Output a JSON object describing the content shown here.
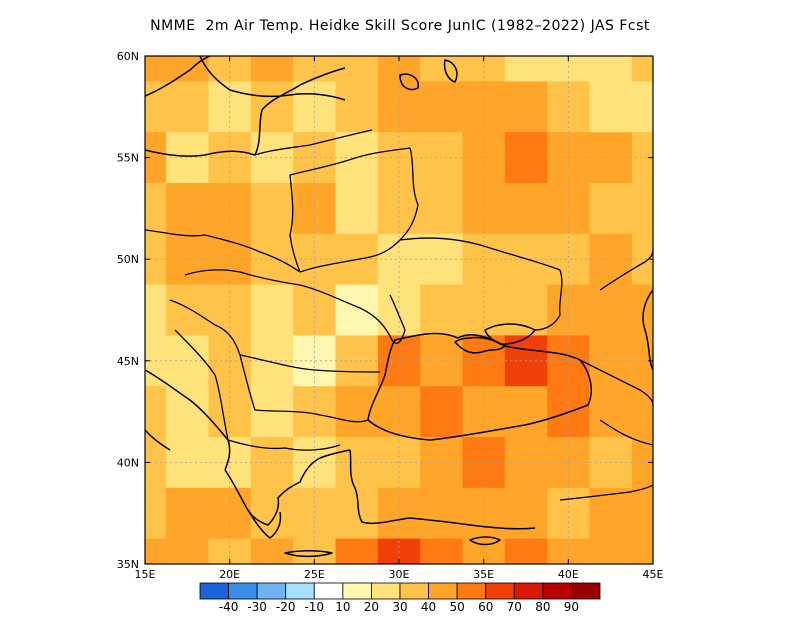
{
  "title": "NMME  2m Air Temp. Heidke Skill Score JunIC (1982–2022) JAS Fcst",
  "map": {
    "lon_range": [
      15,
      45
    ],
    "lat_range": [
      35,
      60
    ],
    "lon_ticks": [
      "15E",
      "20E",
      "25E",
      "30E",
      "35E",
      "40E",
      "45E"
    ],
    "lat_ticks": [
      "35N",
      "40N",
      "45N",
      "50N",
      "55N",
      "60N"
    ],
    "grid": true
  },
  "colorbar": {
    "colors": [
      "#1c62d8",
      "#3a8ee8",
      "#6fb4f0",
      "#a6e0fa",
      "#ffffff",
      "#fff6b0",
      "#ffe27a",
      "#ffc34a",
      "#ffa62a",
      "#ff7a12",
      "#f04008",
      "#d81a04",
      "#b80000",
      "#980000"
    ],
    "labels": [
      "-40",
      "-30",
      "-20",
      "-10",
      "10",
      "20",
      "30",
      "40",
      "50",
      "60",
      "70",
      "80",
      "90"
    ]
  },
  "chart_data": {
    "type": "heatmap",
    "title": "NMME  2m Air Temp. Heidke Skill Score JunIC (1982–2022) JAS Fcst",
    "x_axis": "longitude",
    "y_axis": "latitude",
    "xlim": [
      15,
      45
    ],
    "ylim": [
      35,
      60
    ],
    "levels": [
      -40,
      -30,
      -20,
      -10,
      10,
      20,
      30,
      40,
      50,
      60,
      70,
      80,
      90
    ],
    "lons": [
      15,
      17.5,
      20,
      22.5,
      25,
      27.5,
      30,
      32.5,
      35,
      37.5,
      40,
      42.5,
      45
    ],
    "lats": [
      60,
      57.5,
      55,
      52.5,
      50,
      47.5,
      45,
      42.5,
      40,
      37.5,
      35
    ],
    "values": [
      [
        40,
        40,
        35,
        40,
        35,
        30,
        40,
        35,
        30,
        25,
        20,
        25,
        30
      ],
      [
        35,
        30,
        20,
        30,
        25,
        35,
        40,
        45,
        40,
        40,
        30,
        20,
        25
      ],
      [
        40,
        25,
        30,
        20,
        30,
        20,
        30,
        35,
        40,
        50,
        45,
        40,
        35
      ],
      [
        35,
        45,
        40,
        35,
        40,
        25,
        30,
        30,
        40,
        45,
        40,
        35,
        35
      ],
      [
        30,
        40,
        40,
        35,
        35,
        30,
        20,
        25,
        30,
        30,
        30,
        40,
        35
      ],
      [
        25,
        30,
        30,
        25,
        30,
        15,
        25,
        30,
        30,
        35,
        40,
        45,
        45
      ],
      [
        20,
        20,
        30,
        20,
        15,
        30,
        50,
        45,
        50,
        60,
        55,
        45,
        40
      ],
      [
        30,
        25,
        30,
        25,
        30,
        40,
        45,
        50,
        45,
        45,
        50,
        40,
        40
      ],
      [
        30,
        20,
        25,
        30,
        25,
        35,
        35,
        40,
        50,
        45,
        40,
        35,
        40
      ],
      [
        35,
        40,
        40,
        30,
        35,
        30,
        45,
        40,
        45,
        40,
        35,
        40,
        45
      ],
      [
        40,
        40,
        35,
        45,
        35,
        55,
        60,
        55,
        45,
        50,
        40,
        45,
        40
      ]
    ]
  }
}
